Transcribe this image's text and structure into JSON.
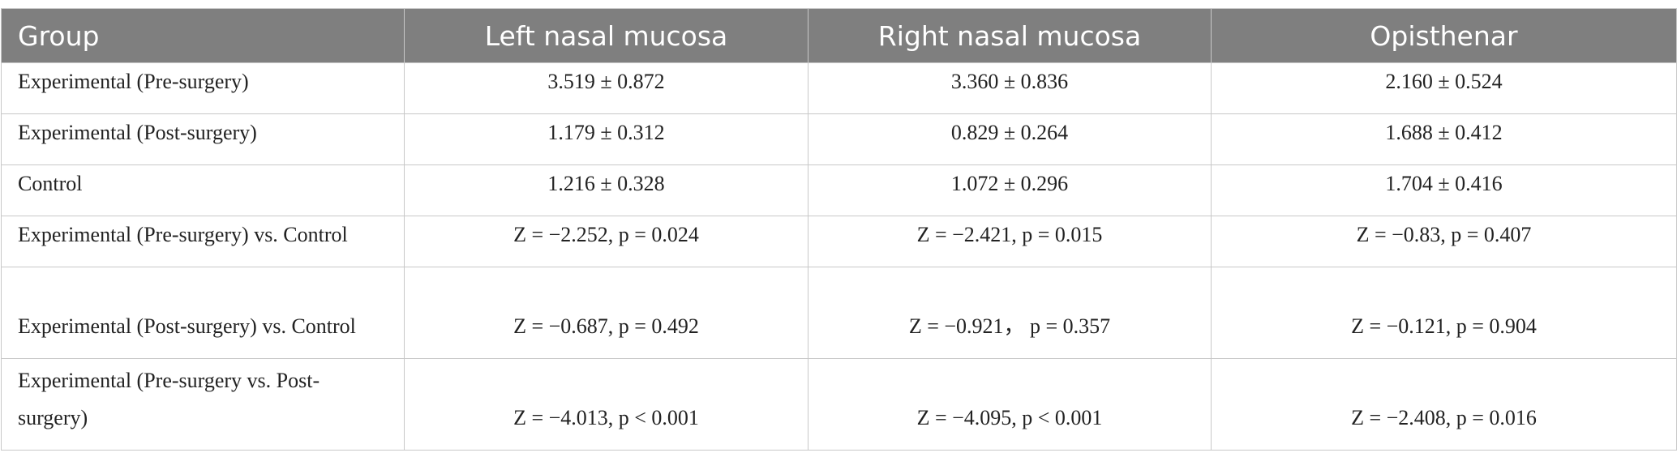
{
  "table": {
    "header": [
      "Group",
      "Left nasal mucosa",
      "Right nasal mucosa",
      "Opisthenar"
    ],
    "rows": [
      [
        "Experimental (Pre-surgery)",
        "3.519 ± 0.872",
        "3.360 ± 0.836",
        "2.160 ± 0.524"
      ],
      [
        "Experimental (Post-surgery)",
        "1.179 ± 0.312",
        "0.829 ± 0.264",
        "1.688 ± 0.412"
      ],
      [
        "Control",
        "1.216 ± 0.328",
        "1.072 ± 0.296",
        "1.704 ± 0.416"
      ],
      [
        "Experimental (Pre-surgery) vs. Control",
        "Z = −2.252, p = 0.024",
        "Z = −2.421, p = 0.015",
        "Z = −0.83, p = 0.407"
      ],
      [
        "Experimental (Post-surgery) vs. Control",
        "Z = −0.687, p = 0.492",
        "Z = −0.921，  p = 0.357",
        "Z = −0.121, p = 0.904"
      ],
      [
        "Experimental (Pre-surgery vs. Post-surgery)",
        "Z = −4.013, p < 0.001",
        "Z = −4.095, p < 0.001",
        "Z = −2.408, p = 0.016"
      ]
    ]
  }
}
